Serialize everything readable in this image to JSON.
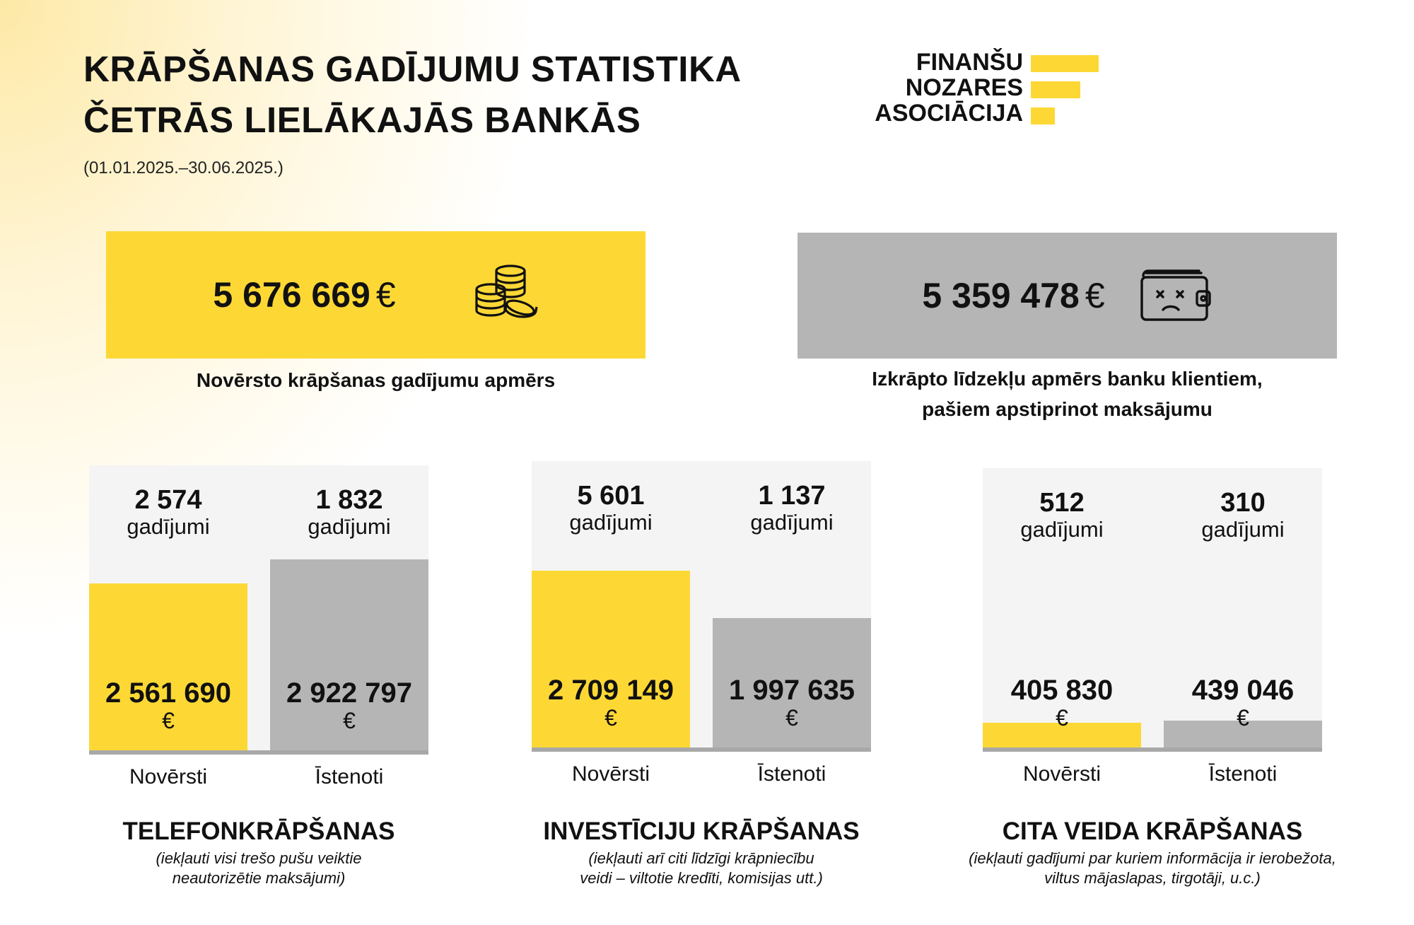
{
  "header": {
    "title_line1": "KRĀPŠANAS GADĪJUMU STATISTIKA",
    "title_line2": "ČETRĀS LIELĀKAJĀS BANKĀS",
    "period": "(01.01.2025.–30.06.2025.)"
  },
  "logo": {
    "line1": "FINANŠU",
    "line2": "NOZARES",
    "line3": "ASOCIĀCIJA",
    "color": "#fdd835"
  },
  "summary": {
    "prevented": {
      "value": "5 676 669",
      "currency": "€",
      "caption": "Novērsto krāpšanas gadījumu apmērs",
      "icon": "coins-stack-icon"
    },
    "defrauded": {
      "value": "5 359 478",
      "currency": "€",
      "caption_line1": "Izkrāpto līdzekļu apmērs banku klientiem,",
      "caption_line2": "pašiem apstiprinot maksājumu",
      "icon": "empty-wallet-icon"
    }
  },
  "colors": {
    "prevented": "#fdd835",
    "realized": "#b5b5b5",
    "panel": "#f4f4f4"
  },
  "chart_data": [
    {
      "type": "bar",
      "title": "TELEFONKRĀPŠANAS",
      "note_line1": "(iekļauti visi trešo pušu veiktie",
      "note_line2": "neautorizētie maksājumi)",
      "categories": [
        "Novērsti",
        "Īstenoti"
      ],
      "cases": [
        "2 574",
        "1 832"
      ],
      "cases_unit": "gadījumi",
      "amounts_label": [
        "2 561 690",
        "2 922 797"
      ],
      "currency": "€",
      "values": [
        2561690,
        2922797
      ]
    },
    {
      "type": "bar",
      "title": "INVESTĪCIJU KRĀPŠANAS",
      "note_line1": "(iekļauti arī citi līdzīgi krāpniecību",
      "note_line2": "veidi – viltotie kredīti, komisijas utt.)",
      "categories": [
        "Novērsti",
        "Īstenoti"
      ],
      "cases": [
        "5 601",
        "1 137"
      ],
      "cases_unit": "gadījumi",
      "amounts_label": [
        "2 709 149",
        "1 997 635"
      ],
      "currency": "€",
      "values": [
        2709149,
        1997635
      ]
    },
    {
      "type": "bar",
      "title": "CITA VEIDA KRĀPŠANAS",
      "note_line1": "(iekļauti gadījumi par kuriem informācija ir ierobežota,",
      "note_line2": "viltus mājaslapas, tirgotāji,  u.c.)",
      "categories": [
        "Novērsti",
        "Īstenoti"
      ],
      "cases": [
        "512",
        "310"
      ],
      "cases_unit": "gadījumi",
      "amounts_label": [
        "405 830",
        "439 046"
      ],
      "currency": "€",
      "values": [
        405830,
        439046
      ]
    }
  ]
}
